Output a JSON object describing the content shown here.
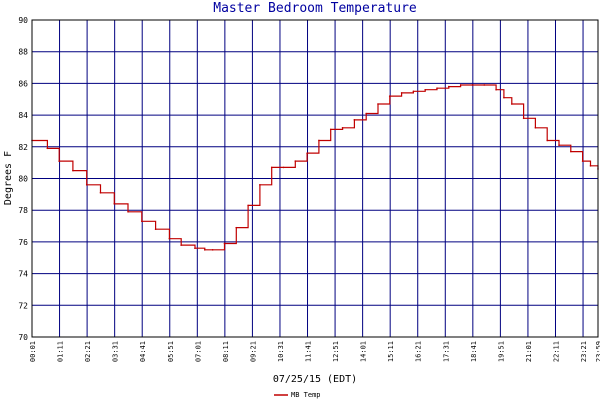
{
  "chart_data": {
    "type": "line",
    "title": "Master Bedroom Temperature",
    "xlabel": "07/25/15 (EDT)",
    "ylabel": "Degrees F",
    "ylim": [
      70,
      90
    ],
    "yticks": [
      "70",
      "72",
      "74",
      "76",
      "78",
      "80",
      "82",
      "84",
      "86",
      "88",
      "90"
    ],
    "xlim": [
      "00:01",
      "23:59"
    ],
    "xticks": [
      "00:01",
      "01:11",
      "02:21",
      "03:31",
      "04:41",
      "05:51",
      "07:01",
      "08:11",
      "09:21",
      "10:31",
      "11:41",
      "12:51",
      "14:01",
      "15:11",
      "16:21",
      "17:31",
      "18:41",
      "19:51",
      "21:01",
      "22:11",
      "23:21",
      "23:59"
    ],
    "grid": true,
    "legend": "bottom-center",
    "colors": {
      "series": "#c00000",
      "grid": "#000080",
      "axis": "#000000",
      "title": "#0000a0"
    },
    "series": [
      {
        "name": "MB Temp",
        "x": [
          "00:01",
          "00:40",
          "01:10",
          "01:45",
          "02:20",
          "02:55",
          "03:30",
          "04:05",
          "04:40",
          "05:15",
          "05:50",
          "06:20",
          "06:55",
          "07:20",
          "07:40",
          "08:10",
          "08:40",
          "09:10",
          "09:40",
          "10:10",
          "10:40",
          "11:10",
          "11:40",
          "12:10",
          "12:40",
          "13:10",
          "13:40",
          "14:10",
          "14:40",
          "15:10",
          "15:40",
          "16:10",
          "16:40",
          "17:10",
          "17:40",
          "18:10",
          "18:40",
          "19:10",
          "19:40",
          "20:00",
          "20:20",
          "20:50",
          "21:20",
          "21:50",
          "22:20",
          "22:50",
          "23:20",
          "23:40",
          "23:59"
        ],
        "y": [
          82.4,
          81.9,
          81.1,
          80.5,
          79.6,
          79.1,
          78.4,
          77.9,
          77.3,
          76.8,
          76.2,
          75.8,
          75.6,
          75.5,
          75.5,
          75.9,
          76.9,
          78.3,
          79.6,
          80.7,
          80.7,
          81.1,
          81.6,
          82.4,
          83.1,
          83.2,
          83.7,
          84.1,
          84.7,
          85.2,
          85.4,
          85.5,
          85.6,
          85.7,
          85.8,
          85.9,
          85.9,
          85.9,
          85.6,
          85.1,
          84.7,
          83.8,
          83.2,
          82.4,
          82.1,
          81.7,
          81.1,
          80.8,
          80.6
        ]
      }
    ]
  }
}
